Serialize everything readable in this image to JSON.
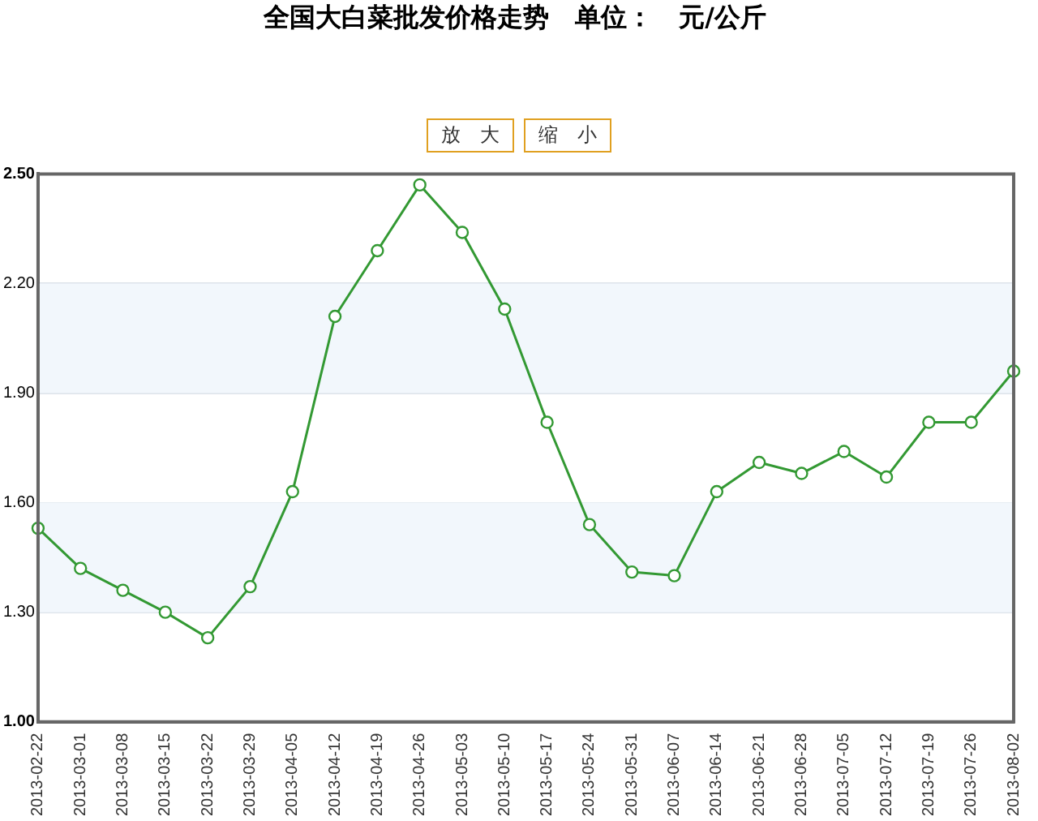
{
  "chart_data": {
    "type": "line",
    "title": "全国大白菜批发价格走势　单位：　元/公斤",
    "categories": [
      "2013-02-22",
      "2013-03-01",
      "2013-03-08",
      "2013-03-15",
      "2013-03-22",
      "2013-03-29",
      "2013-04-05",
      "2013-04-12",
      "2013-04-19",
      "2013-04-26",
      "2013-05-03",
      "2013-05-10",
      "2013-05-17",
      "2013-05-24",
      "2013-05-31",
      "2013-06-07",
      "2013-06-14",
      "2013-06-21",
      "2013-06-28",
      "2013-07-05",
      "2013-07-12",
      "2013-07-19",
      "2013-07-26",
      "2013-08-02"
    ],
    "series": [
      {
        "color": "#339933",
        "values": [
          1.53,
          1.42,
          1.36,
          1.3,
          1.23,
          1.37,
          1.63,
          2.11,
          2.29,
          2.47,
          2.34,
          2.13,
          1.82,
          1.54,
          1.41,
          1.4,
          1.63,
          1.71,
          1.68,
          1.74,
          1.67,
          1.82,
          1.82,
          1.96
        ]
      }
    ],
    "ylim": [
      1.0,
      2.5
    ],
    "yticks": [
      {
        "value": 1.0,
        "label": "1.00"
      },
      {
        "value": 1.3,
        "label": "1.30"
      },
      {
        "value": 1.6,
        "label": "1.60"
      },
      {
        "value": 1.9,
        "label": "1.90"
      },
      {
        "value": 2.2,
        "label": "2.20"
      },
      {
        "value": 2.5,
        "label": "2.50"
      }
    ],
    "grid": "y",
    "legend": false,
    "marker": "circle",
    "line_style": "solid",
    "annotations": [
      "放　大",
      "缩　小"
    ]
  }
}
